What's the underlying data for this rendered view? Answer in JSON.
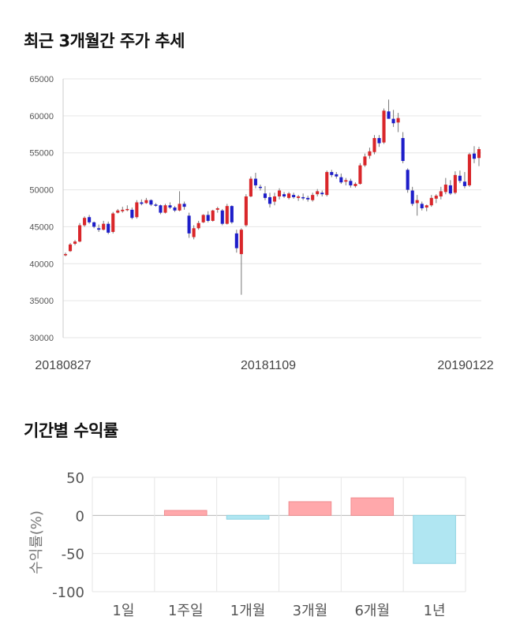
{
  "titles": {
    "price_trend": "최근 3개월간 주가 추세",
    "period_returns": "기간별 수익률"
  },
  "colors": {
    "up": "#d9262a",
    "down": "#1d1dc9",
    "positive_bar": "#ffa8ab",
    "negative_bar": "#b0e6f2",
    "grid": "#e6e6e6"
  },
  "chart_data": [
    {
      "type": "candlestick",
      "title": "최근 3개월간 주가 추세",
      "yticks": [
        "65000",
        "60000",
        "55000",
        "50000",
        "45000",
        "40000",
        "35000",
        "30000"
      ],
      "ylim": [
        30000,
        65000
      ],
      "x_tick_labels": [
        "20180827",
        "20181109",
        "20190122"
      ],
      "grid": true,
      "candles": [
        [
          41200,
          41500,
          41000,
          41300
        ],
        [
          41700,
          42800,
          41600,
          42600
        ],
        [
          42700,
          43200,
          42500,
          43000
        ],
        [
          43000,
          45500,
          42900,
          45200
        ],
        [
          45200,
          46400,
          45000,
          46200
        ],
        [
          46300,
          46600,
          45400,
          45600
        ],
        [
          45600,
          45700,
          44800,
          45000
        ],
        [
          44800,
          45300,
          44300,
          44600
        ],
        [
          44600,
          45800,
          44500,
          45400
        ],
        [
          45400,
          45700,
          44000,
          44200
        ],
        [
          44300,
          47000,
          44100,
          46800
        ],
        [
          46900,
          47400,
          46800,
          47200
        ],
        [
          47100,
          47700,
          46900,
          47300
        ],
        [
          47300,
          47900,
          47100,
          47400
        ],
        [
          47300,
          47600,
          46000,
          46200
        ],
        [
          46300,
          48600,
          46100,
          48300
        ],
        [
          48300,
          48700,
          47900,
          48100
        ],
        [
          48200,
          48900,
          48100,
          48600
        ],
        [
          48600,
          48700,
          47800,
          48000
        ],
        [
          48000,
          48200,
          47700,
          47900
        ],
        [
          47900,
          48000,
          46700,
          46900
        ],
        [
          46900,
          48100,
          46800,
          47900
        ],
        [
          47900,
          48300,
          47400,
          47600
        ],
        [
          47600,
          47800,
          47000,
          47200
        ],
        [
          47200,
          49800,
          47100,
          48100
        ],
        [
          48100,
          48400,
          47300,
          47700
        ],
        [
          46500,
          46900,
          43500,
          44100
        ],
        [
          43600,
          45200,
          43300,
          44800
        ],
        [
          44800,
          45800,
          44600,
          45500
        ],
        [
          45600,
          46700,
          45500,
          46600
        ],
        [
          46600,
          47100,
          45600,
          45800
        ],
        [
          45800,
          47300,
          45700,
          47200
        ],
        [
          47300,
          47700,
          46900,
          47500
        ],
        [
          47200,
          47400,
          45200,
          45400
        ],
        [
          45400,
          48100,
          45300,
          47800
        ],
        [
          47800,
          47900,
          45400,
          45600
        ],
        [
          44100,
          44600,
          41500,
          42100
        ],
        [
          41300,
          44800,
          35800,
          44600
        ],
        [
          45200,
          49400,
          45000,
          49100
        ],
        [
          49100,
          51800,
          49000,
          51500
        ],
        [
          51500,
          52300,
          50200,
          50600
        ],
        [
          50400,
          50700,
          49900,
          50300
        ],
        [
          49500,
          50500,
          48600,
          48900
        ],
        [
          49000,
          49600,
          47600,
          48100
        ],
        [
          48400,
          49600,
          47900,
          49100
        ],
        [
          49100,
          50200,
          48700,
          49900
        ],
        [
          49400,
          49700,
          48900,
          49100
        ],
        [
          48900,
          49700,
          48700,
          49500
        ],
        [
          49300,
          49600,
          48800,
          49000
        ],
        [
          48900,
          49300,
          48500,
          49100
        ],
        [
          49000,
          49500,
          48600,
          48900
        ],
        [
          48900,
          49200,
          48400,
          48700
        ],
        [
          48600,
          49600,
          48400,
          49300
        ],
        [
          49400,
          50100,
          49100,
          49800
        ],
        [
          49600,
          49900,
          49100,
          49400
        ],
        [
          49300,
          52600,
          49100,
          52400
        ],
        [
          52400,
          52700,
          51700,
          52000
        ],
        [
          52100,
          52400,
          51500,
          51800
        ],
        [
          51700,
          52200,
          50800,
          51000
        ],
        [
          51100,
          51600,
          50600,
          51300
        ],
        [
          51200,
          51500,
          50300,
          50600
        ],
        [
          50500,
          51000,
          50300,
          50800
        ],
        [
          50800,
          53600,
          50700,
          53300
        ],
        [
          53300,
          54900,
          53100,
          54500
        ],
        [
          54600,
          55700,
          54200,
          55200
        ],
        [
          55100,
          57400,
          54800,
          57000
        ],
        [
          57000,
          57400,
          55800,
          56300
        ],
        [
          56400,
          61000,
          56200,
          60700
        ],
        [
          60600,
          62200,
          59700,
          59600
        ],
        [
          59600,
          60800,
          58500,
          59000
        ],
        [
          59100,
          60400,
          57800,
          59700
        ],
        [
          57000,
          57800,
          53600,
          53900
        ],
        [
          52700,
          52900,
          49600,
          50000
        ],
        [
          49900,
          50400,
          47800,
          48100
        ],
        [
          48200,
          49300,
          46500,
          48600
        ],
        [
          48100,
          48400,
          47200,
          47500
        ],
        [
          47600,
          48000,
          47100,
          47900
        ],
        [
          47900,
          49300,
          47700,
          48900
        ],
        [
          48800,
          49400,
          48200,
          49200
        ],
        [
          49100,
          50400,
          48700,
          49800
        ],
        [
          49700,
          51600,
          49400,
          50700
        ],
        [
          50600,
          51300,
          49300,
          49500
        ],
        [
          49600,
          52500,
          49400,
          52000
        ],
        [
          51900,
          52600,
          50900,
          51200
        ],
        [
          51100,
          52400,
          50200,
          50500
        ],
        [
          50600,
          55000,
          50400,
          54800
        ],
        [
          54900,
          55900,
          53600,
          54200
        ],
        [
          54300,
          55800,
          53200,
          55500
        ]
      ]
    },
    {
      "type": "bar",
      "title": "기간별 수익률",
      "ylabel": "수익률(%)",
      "yticks": [
        "50",
        "0",
        "-50",
        "-100"
      ],
      "ylim": [
        -100,
        50
      ],
      "categories": [
        "1일",
        "1주일",
        "1개월",
        "3개월",
        "6개월",
        "1년"
      ],
      "values": [
        0,
        6.5,
        -5,
        18,
        23,
        -63
      ],
      "grid": true
    }
  ]
}
